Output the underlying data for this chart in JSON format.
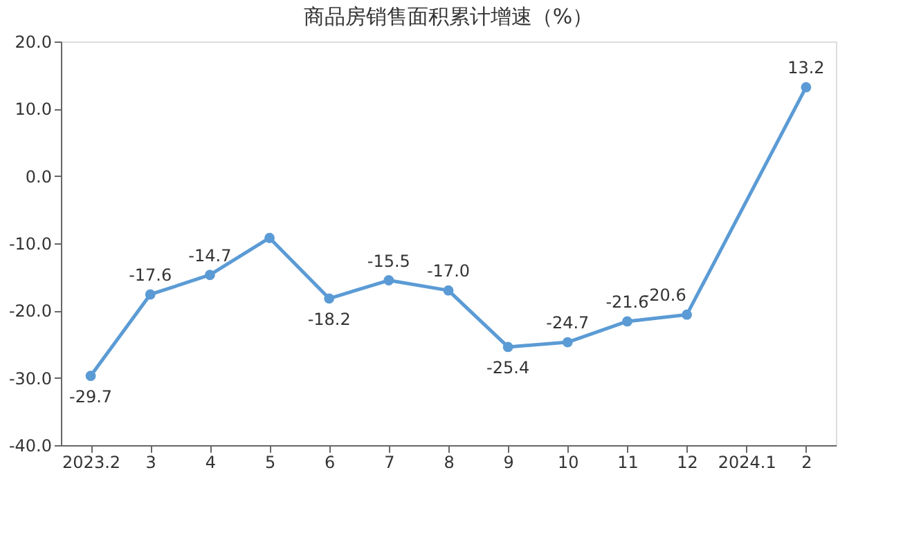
{
  "chart_data": {
    "type": "line",
    "title": "商品房销售面积累计增速（%）",
    "categories": [
      "2023.2",
      "3",
      "4",
      "5",
      "6",
      "7",
      "8",
      "9",
      "10",
      "11",
      "12",
      "2024.1",
      "2"
    ],
    "series": [
      {
        "color": "#5b9bd5",
        "values": [
          -29.7,
          -17.6,
          -14.7,
          -9.2,
          -18.2,
          -15.5,
          -17.0,
          -25.4,
          -24.7,
          -21.6,
          -20.6,
          null,
          13.2
        ],
        "value_labels": [
          "-29.7",
          "-17.6",
          "-14.7",
          null,
          "-18.2",
          "-15.5",
          "-17.0",
          "-25.4",
          "-24.7",
          "-21.6",
          "-20.6",
          null,
          "13.2"
        ]
      }
    ],
    "ylim": [
      -40,
      20
    ],
    "yticks": [
      {
        "value": -40,
        "label": "-40.0"
      },
      {
        "value": -30,
        "label": "-30.0"
      },
      {
        "value": -20,
        "label": "-20.0"
      },
      {
        "value": -10,
        "label": "-10.0"
      },
      {
        "value": 0,
        "label": "0.0"
      },
      {
        "value": 10,
        "label": "10.0"
      },
      {
        "value": 20,
        "label": "20.0"
      }
    ],
    "grid": false,
    "marker": "circle",
    "line_style": "solid"
  }
}
